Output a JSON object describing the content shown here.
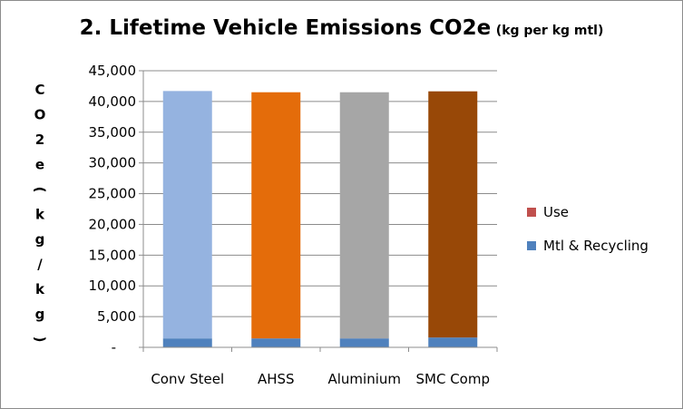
{
  "chart_data": {
    "type": "bar",
    "stacked": true,
    "title": "2. Lifetime Vehicle Emissions CO2e",
    "title_suffix": "(kg per kg mtl)",
    "xlabel": "",
    "ylabel": "CO2e (kg/kg)",
    "ylabel_chars": [
      "C",
      "O",
      "2",
      "e",
      "(",
      "k",
      "g",
      "/",
      "k",
      "g",
      ")"
    ],
    "categories": [
      "Conv Steel",
      "AHSS",
      "Aluminium",
      "SMC Comp"
    ],
    "ylim": [
      0,
      45000
    ],
    "yticks": [
      0,
      5000,
      10000,
      15000,
      20000,
      25000,
      30000,
      35000,
      40000,
      45000
    ],
    "ytick_labels": [
      "-",
      "5,000",
      "10,000",
      "15,000",
      "20,000",
      "25,000",
      "30,000",
      "35,000",
      "40,000",
      "45,000"
    ],
    "grid": true,
    "legend_position": "right",
    "series": [
      {
        "name": "Mtl & Recycling",
        "values": [
          1450,
          1450,
          1450,
          1600
        ],
        "color": "#4f81bd"
      },
      {
        "name": "Use",
        "values": [
          40250,
          40050,
          40050,
          40050
        ],
        "colors": [
          "#95b3e0",
          "#e46c0a",
          "#a6a6a6",
          "#984807"
        ],
        "legend_color": "#c0504d"
      }
    ]
  }
}
